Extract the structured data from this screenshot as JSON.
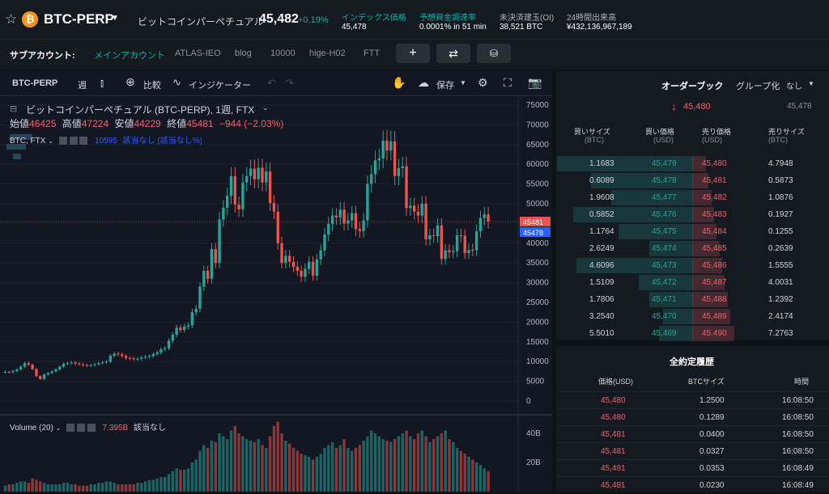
{
  "header": {
    "symbol": "BTC-PERP",
    "name": "ビットコインパーペチュアル",
    "price": "45,482",
    "change": "+0.19%",
    "stats": [
      {
        "label": "インデックス価格",
        "value": "45,478"
      },
      {
        "label": "予想資金調達率",
        "value": "0.0001% in 51 min"
      },
      {
        "label": "未決済建玉(OI)",
        "value": "38,521 BTC"
      },
      {
        "label": "24時間出来高",
        "value": "¥432,136,967,189"
      }
    ]
  },
  "subbar": {
    "label": "サブアカウント:",
    "accounts": [
      "メインアカウント",
      "ATLAS-IEO",
      "blog",
      "10000",
      "hige-H02",
      "FTT"
    ]
  },
  "chart_toolbar": {
    "symbol": "BTC-PERP",
    "interval": "週",
    "compare": "比較",
    "indicators": "インジケーター",
    "save": "保存"
  },
  "chart_legend": {
    "title": "ビットコインパーペチュアル (BTC-PERP), 1週, FTX",
    "open_label": "始値",
    "open": "46425",
    "high_label": "高値",
    "high": "47224",
    "low_label": "安値",
    "low": "44229",
    "close_label": "終値",
    "close": "45481",
    "change": "−944 (−2.03%)",
    "study": "BTC, FTX",
    "study_value": "10595",
    "study_extra": "該当なし (該当なし%)"
  },
  "volume_legend": {
    "title": "Volume (20)",
    "value": "7.395B",
    "extra": "該当なし"
  },
  "chart_data": {
    "type": "candlestick",
    "y_ticks": [
      "75000",
      "70000",
      "65000",
      "60000",
      "55000",
      "50000",
      "45000",
      "40000",
      "35000",
      "30000",
      "25000",
      "20000",
      "15000",
      "10000",
      "5000",
      "0"
    ],
    "volume_ticks": [
      "40B",
      "20B"
    ],
    "last_price_label": "45481",
    "index_price_label": "45478",
    "ylim": [
      0,
      75000
    ],
    "closes": [
      7400,
      7300,
      7600,
      8000,
      8700,
      9600,
      9200,
      8100,
      6300,
      5600,
      6700,
      7100,
      7500,
      8000,
      8700,
      9400,
      9600,
      9800,
      9500,
      9300,
      9100,
      9000,
      9100,
      9300,
      9600,
      9800,
      10000,
      11500,
      12000,
      11800,
      11400,
      10900,
      10800,
      10600,
      10700,
      11000,
      11200,
      11400,
      11900,
      12300,
      13100,
      13400,
      15300,
      16800,
      18600,
      18000,
      18900,
      19200,
      22500,
      23400,
      29000,
      33000,
      31000,
      38500,
      35000,
      46000,
      49000,
      52000,
      57000,
      49800,
      48600,
      55400,
      57000,
      58900,
      56200,
      59100,
      55400,
      58200,
      50200,
      48000,
      40000,
      35000,
      36800,
      35300,
      34000,
      33000,
      31500,
      33500,
      35300,
      31800,
      35900,
      38200,
      42200,
      44900,
      47000,
      46500,
      48500,
      45000,
      45800,
      47600,
      43600,
      43100,
      45800,
      55000,
      57500,
      61000,
      61500,
      66000,
      63500,
      65800,
      57000,
      59000,
      59500,
      48900,
      49500,
      48000,
      47000,
      50000,
      41000,
      42000,
      41800,
      44500,
      36000,
      38200,
      37700,
      38000,
      42000,
      41900,
      37500,
      38300,
      38200,
      43000,
      46400,
      47300,
      45481
    ],
    "volumes": [
      4,
      5,
      5,
      6,
      7,
      7,
      6,
      9,
      8,
      7,
      6,
      5,
      5,
      5,
      5,
      6,
      6,
      5,
      5,
      4,
      4,
      4,
      5,
      5,
      6,
      6,
      7,
      7,
      6,
      5,
      5,
      5,
      5,
      5,
      6,
      6,
      7,
      8,
      8,
      9,
      10,
      10,
      12,
      14,
      16,
      15,
      15,
      16,
      20,
      22,
      28,
      32,
      30,
      35,
      34,
      40,
      38,
      36,
      42,
      45,
      40,
      38,
      36,
      35,
      34,
      36,
      32,
      30,
      38,
      45,
      48,
      40,
      35,
      33,
      30,
      28,
      26,
      25,
      24,
      22,
      24,
      26,
      30,
      32,
      34,
      30,
      32,
      36,
      30,
      28,
      30,
      32,
      35,
      38,
      42,
      40,
      38,
      36,
      35,
      34,
      36,
      38,
      40,
      42,
      38,
      36,
      40,
      42,
      38,
      34,
      36,
      38,
      40,
      42,
      36,
      34,
      30,
      28,
      26,
      24,
      22,
      20,
      18,
      16,
      14
    ]
  },
  "orderbook": {
    "title": "オーダーブック",
    "group_label": "グループ化",
    "group_value": "なし",
    "last_price": "45,480",
    "index_price": "45,478",
    "col_bid_size": "買いサイズ",
    "col_bid_price": "買い価格",
    "col_ask_price": "売り価格",
    "col_ask_size": "売りサイズ",
    "unit_btc": "(BTC)",
    "unit_usd": "(USD)",
    "rows": [
      {
        "bid_size": "1.1683",
        "bid": "45,479",
        "ask": "45,480",
        "ask_size": "4.7948"
      },
      {
        "bid_size": "0.6089",
        "bid": "45,478",
        "ask": "45,481",
        "ask_size": "0.5873"
      },
      {
        "bid_size": "1.9608",
        "bid": "45,477",
        "ask": "45,482",
        "ask_size": "1.0876"
      },
      {
        "bid_size": "0.5852",
        "bid": "45,476",
        "ask": "45,483",
        "ask_size": "0.1927"
      },
      {
        "bid_size": "1.1764",
        "bid": "45,475",
        "ask": "45,484",
        "ask_size": "0.1255"
      },
      {
        "bid_size": "2.6249",
        "bid": "45,474",
        "ask": "45,485",
        "ask_size": "0.2639"
      },
      {
        "bid_size": "4.6096",
        "bid": "45,473",
        "ask": "45,486",
        "ask_size": "1.5555"
      },
      {
        "bid_size": "1.5109",
        "bid": "45,472",
        "ask": "45,487",
        "ask_size": "4.0031"
      },
      {
        "bid_size": "1.7806",
        "bid": "45,471",
        "ask": "45,488",
        "ask_size": "1.2392"
      },
      {
        "bid_size": "3.2540",
        "bid": "45,470",
        "ask": "45,489",
        "ask_size": "2.4174"
      },
      {
        "bid_size": "5.5010",
        "bid": "45,469",
        "ask": "45,490",
        "ask_size": "7.2763"
      }
    ]
  },
  "trades": {
    "title": "全約定履歴",
    "col_price": "価格(USD)",
    "col_size": "BTCサイズ",
    "col_time": "時間",
    "rows": [
      {
        "price": "45,480",
        "size": "1.2500",
        "time": "16:08:50"
      },
      {
        "price": "45,480",
        "size": "0.1289",
        "time": "16:08:50"
      },
      {
        "price": "45,481",
        "size": "0.0400",
        "time": "16:08:50"
      },
      {
        "price": "45,481",
        "size": "0.0327",
        "time": "16:08:50"
      },
      {
        "price": "45,481",
        "size": "0.0353",
        "time": "16:08:49"
      },
      {
        "price": "45,481",
        "size": "0.0230",
        "time": "16:08:49"
      }
    ]
  },
  "colors": {
    "up": "#26a69a",
    "down": "#ef5350",
    "accent": "#00b4ad",
    "btc": "#f7931a"
  }
}
